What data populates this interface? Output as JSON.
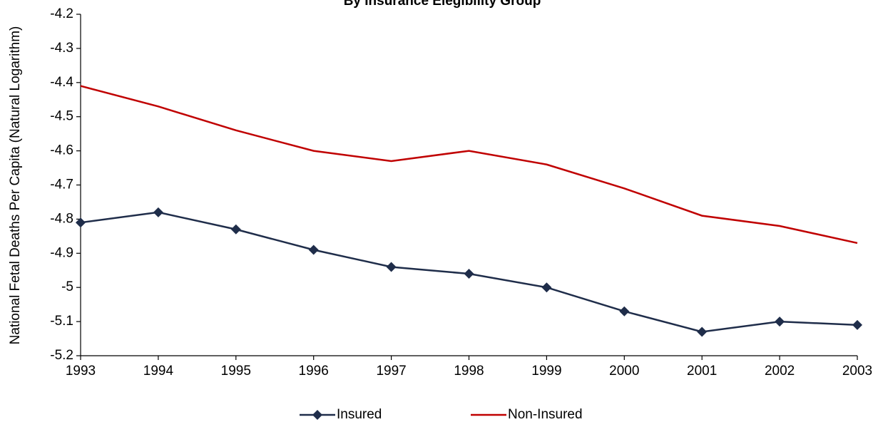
{
  "chart_data": {
    "type": "line",
    "title": "By Insurance Elegibility Group",
    "y_label": "National Fetal Deaths Per Capita (Natural Logarithm)",
    "x": [
      1993,
      1994,
      1995,
      1996,
      1997,
      1998,
      1999,
      2000,
      2001,
      2002,
      2003
    ],
    "xlim": [
      1993,
      2003
    ],
    "xticks": [
      1993,
      1994,
      1995,
      1996,
      1997,
      1998,
      1999,
      2000,
      2001,
      2002,
      2003
    ],
    "ylim": [
      -5.2,
      -4.2
    ],
    "yticks": [
      -5.2,
      -5.1,
      -5,
      -4.9,
      -4.8,
      -4.7,
      -4.6,
      -4.5,
      -4.4,
      -4.3,
      -4.2
    ],
    "series": [
      {
        "name": "Insured",
        "color": "#1f2d4a",
        "marker": "diamond",
        "values": [
          -4.81,
          -4.78,
          -4.83,
          -4.89,
          -4.94,
          -4.96,
          -5.0,
          -5.07,
          -5.13,
          -5.1,
          -5.11
        ]
      },
      {
        "name": "Non-Insured",
        "color": "#c00000",
        "marker": "none",
        "values": [
          -4.41,
          -4.47,
          -4.54,
          -4.6,
          -4.63,
          -4.6,
          -4.64,
          -4.71,
          -4.79,
          -4.82,
          -4.87
        ]
      }
    ],
    "legend": "bottom"
  }
}
